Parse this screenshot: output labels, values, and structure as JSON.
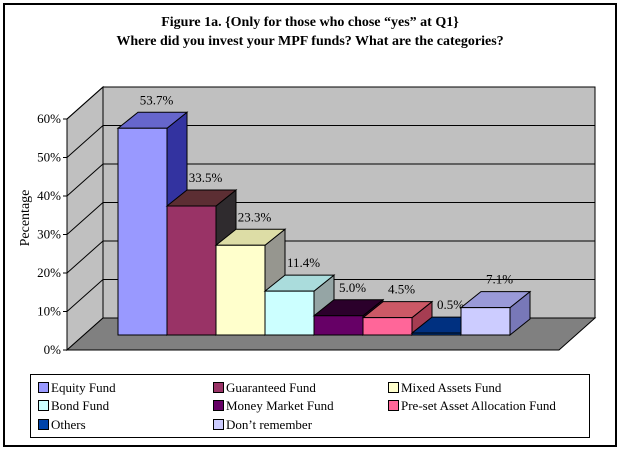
{
  "title": {
    "line1": "Figure 1a. {Only for those who chose “yes” at Q1}",
    "line2": "Where did you invest your MPF funds? What are the categories?"
  },
  "chart_data": {
    "type": "bar",
    "projection": "3d",
    "ylabel": "Pecentage",
    "xlabel": "",
    "ylim": [
      0,
      60
    ],
    "y_tick_values": [
      0,
      10,
      20,
      30,
      40,
      50,
      60
    ],
    "y_tick_labels": [
      "0%",
      "10%",
      "20%",
      "30%",
      "40%",
      "50%",
      "60%"
    ],
    "grid": true,
    "legend_position": "bottom",
    "wall_color": "#C0C0C0",
    "floor_color": "#808080",
    "categories": [
      "Equity Fund",
      "Guaranteed Fund",
      "Mixed Assets Fund",
      "Bond Fund",
      "Money Market Fund",
      "Pre-set Asset Allocation Fund",
      "Others",
      "Don’t remember"
    ],
    "values": [
      53.7,
      33.5,
      23.3,
      11.4,
      5.0,
      4.5,
      0.5,
      7.1
    ],
    "series": [
      {
        "name": "Equity Fund",
        "value": 53.7,
        "label": "53.7%",
        "colors": {
          "front": "#9999FF",
          "top": "#6666CC",
          "side": "#3333A0"
        }
      },
      {
        "name": "Guaranteed Fund",
        "value": 33.5,
        "label": "33.5%",
        "colors": {
          "front": "#993366",
          "top": "#5C2E33",
          "side": "#2F2B2E"
        }
      },
      {
        "name": "Mixed Assets Fund",
        "value": 23.3,
        "label": "23.3%",
        "colors": {
          "front": "#FFFFCC",
          "top": "#DDDDA6",
          "side": "#96968F"
        }
      },
      {
        "name": "Bond Fund",
        "value": 11.4,
        "label": "11.4%",
        "colors": {
          "front": "#CCFFFF",
          "top": "#AADCDC",
          "side": "#95A5A5"
        }
      },
      {
        "name": "Money Market Fund",
        "value": 5.0,
        "label": "5.0%",
        "colors": {
          "front": "#660066",
          "top": "#2B002B",
          "side": "#380038"
        }
      },
      {
        "name": "Pre-set Asset Allocation Fund",
        "value": 4.5,
        "label": "4.5%",
        "colors": {
          "front": "#FF6699",
          "top": "#CC5966",
          "side": "#A63D52"
        }
      },
      {
        "name": "Others",
        "value": 0.5,
        "label": "0.5%",
        "colors": {
          "front": "#0044AA",
          "top": "#003080",
          "side": "#002560"
        }
      },
      {
        "name": "Don’t remember",
        "value": 7.1,
        "label": "7.1%",
        "colors": {
          "front": "#CCCCFF",
          "top": "#9A9AD8",
          "side": "#7878B8"
        }
      }
    ]
  }
}
